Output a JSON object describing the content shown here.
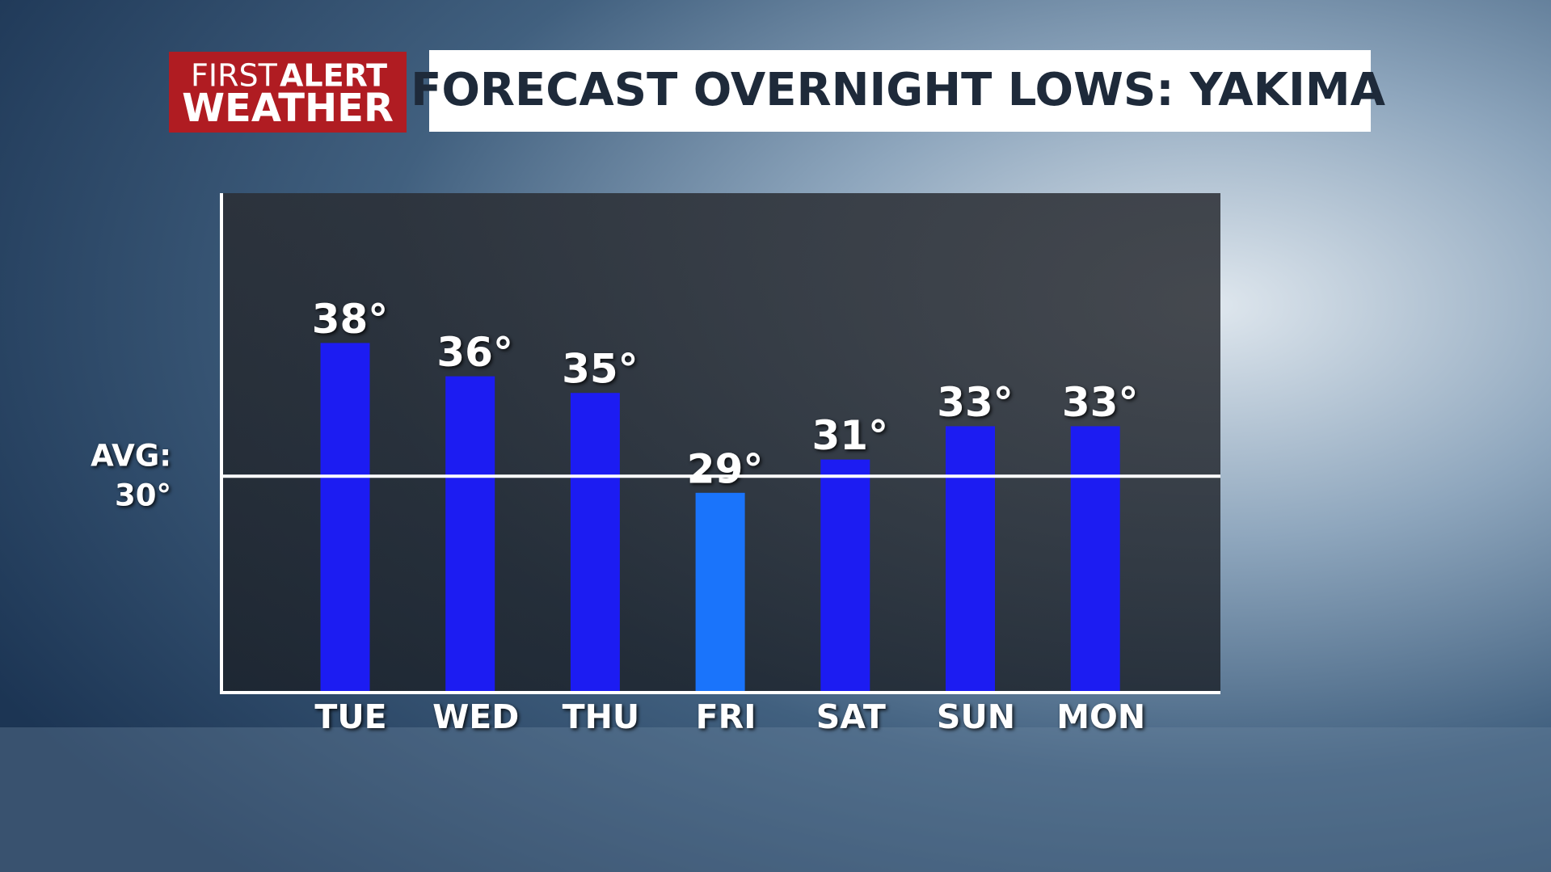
{
  "chart_data": {
    "type": "bar",
    "title": "FORECAST OVERNIGHT LOWS: YAKIMA",
    "logo": [
      "FIRST",
      "ALERT",
      "WEATHER"
    ],
    "categories": [
      "TUE",
      "WED",
      "THU",
      "FRI",
      "SAT",
      "SUN",
      "MON"
    ],
    "values": [
      38,
      36,
      35,
      29,
      31,
      33,
      33
    ],
    "value_labels": [
      "38°",
      "36°",
      "35°",
      "29°",
      "31°",
      "33°",
      "33°"
    ],
    "colors": [
      "#1c1cf2",
      "#1c1cf2",
      "#1c1cf2",
      "#1a74fb",
      "#1c1cf2",
      "#1c1cf2",
      "#1c1cf2"
    ],
    "ylim": [
      17,
      47
    ],
    "average": {
      "label": "AVG:",
      "value": 30,
      "value_label": "30°"
    }
  }
}
